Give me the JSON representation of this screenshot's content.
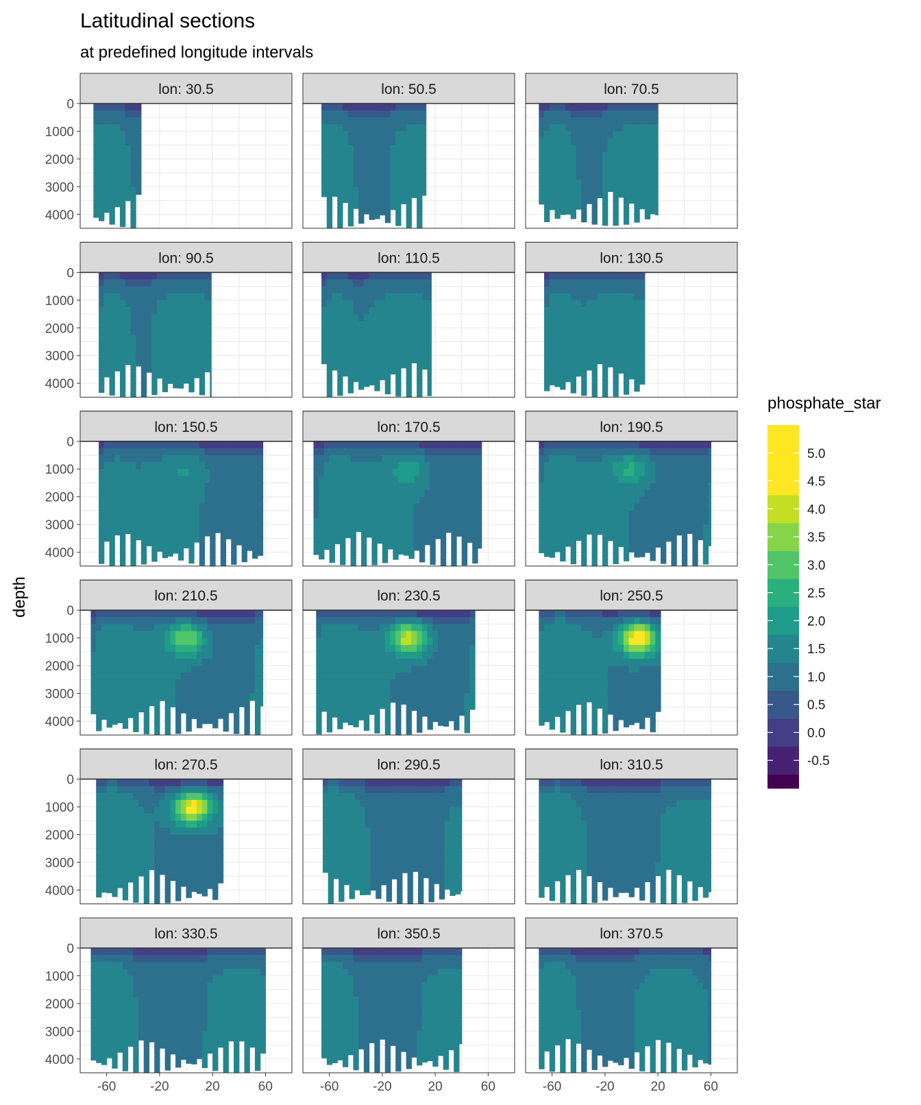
{
  "chart_data": {
    "type": "heatmap",
    "title": "Latitudinal sections",
    "subtitle": "at predefined longitude intervals",
    "ylabel": "depth",
    "xlabel": "",
    "x_ticks": [
      -60,
      -20,
      20,
      60
    ],
    "x_tick_labels": [
      "-60",
      "-20",
      "20",
      "60"
    ],
    "x_grid": [
      -80,
      -60,
      -40,
      -20,
      0,
      20,
      40,
      60,
      80
    ],
    "xlim": [
      -80,
      80
    ],
    "y_ticks": [
      0,
      1000,
      2000,
      3000,
      4000
    ],
    "y_tick_labels": [
      "0",
      "1000",
      "2000",
      "3000",
      "4000"
    ],
    "ylim": [
      4500,
      0
    ],
    "panel_label_prefix": "lon: ",
    "panels": [
      {
        "lon": "30.5",
        "label": "lon: 30.5",
        "lat_range": [
          -70,
          -34
        ],
        "max_depth": 4500,
        "hotspot": 0,
        "hot_lat": null
      },
      {
        "lon": "50.5",
        "label": "lon: 50.5",
        "lat_range": [
          -66,
          13
        ],
        "max_depth": 4500,
        "hotspot": 0,
        "hot_lat": null
      },
      {
        "lon": "70.5",
        "label": "lon: 70.5",
        "lat_range": [
          -70,
          20
        ],
        "max_depth": 4400,
        "hotspot": 0,
        "hot_lat": null
      },
      {
        "lon": "90.5",
        "label": "lon: 90.5",
        "lat_range": [
          -66,
          19
        ],
        "max_depth": 4500,
        "hotspot": 0,
        "hot_lat": null
      },
      {
        "lon": "110.5",
        "label": "lon: 110.5",
        "lat_range": [
          -66,
          17
        ],
        "max_depth": 4500,
        "hotspot": 0,
        "hot_lat": null
      },
      {
        "lon": "130.5",
        "label": "lon: 130.5",
        "lat_range": [
          -66,
          10
        ],
        "max_depth": 4500,
        "hotspot": 0,
        "hot_lat": null
      },
      {
        "lon": "150.5",
        "label": "lon: 150.5",
        "lat_range": [
          -66,
          58
        ],
        "max_depth": 4500,
        "hotspot": 0.5,
        "hot_lat": 0
      },
      {
        "lon": "170.5",
        "label": "lon: 170.5",
        "lat_range": [
          -72,
          55
        ],
        "max_depth": 4500,
        "hotspot": 0.8,
        "hot_lat": 0
      },
      {
        "lon": "190.5",
        "label": "lon: 190.5",
        "lat_range": [
          -70,
          60
        ],
        "max_depth": 4500,
        "hotspot": 1.2,
        "hot_lat": 0
      },
      {
        "lon": "210.5",
        "label": "lon: 210.5",
        "lat_range": [
          -72,
          58
        ],
        "max_depth": 4500,
        "hotspot": 2.2,
        "hot_lat": 0
      },
      {
        "lon": "230.5",
        "label": "lon: 230.5",
        "lat_range": [
          -70,
          50
        ],
        "max_depth": 4500,
        "hotspot": 3.0,
        "hot_lat": 0
      },
      {
        "lon": "250.5",
        "label": "lon: 250.5",
        "lat_range": [
          -70,
          22
        ],
        "max_depth": 4500,
        "hotspot": 3.8,
        "hot_lat": 5
      },
      {
        "lon": "270.5",
        "label": "lon: 270.5",
        "lat_range": [
          -68,
          28
        ],
        "max_depth": 4500,
        "hotspot": 3.6,
        "hot_lat": 5
      },
      {
        "lon": "290.5",
        "label": "lon: 290.5",
        "lat_range": [
          -65,
          40
        ],
        "max_depth": 4500,
        "hotspot": 0,
        "hot_lat": null
      },
      {
        "lon": "310.5",
        "label": "lon: 310.5",
        "lat_range": [
          -70,
          60
        ],
        "max_depth": 4500,
        "hotspot": 0,
        "hot_lat": null
      },
      {
        "lon": "330.5",
        "label": "lon: 330.5",
        "lat_range": [
          -72,
          60
        ],
        "max_depth": 4500,
        "hotspot": 0,
        "hot_lat": null
      },
      {
        "lon": "350.5",
        "label": "lon: 350.5",
        "lat_range": [
          -66,
          40
        ],
        "max_depth": 4500,
        "hotspot": 0,
        "hot_lat": null
      },
      {
        "lon": "370.5",
        "label": "lon: 370.5",
        "lat_range": [
          -70,
          60
        ],
        "max_depth": 4500,
        "hotspot": 0,
        "hot_lat": null
      }
    ],
    "legend": {
      "title": "phosphate_star",
      "placement": "right",
      "labels": [
        "5.0",
        "4.5",
        "4.0",
        "3.5",
        "3.0",
        "2.5",
        "2.0",
        "1.5",
        "1.0",
        "0.5",
        "0.0",
        "-0.5"
      ],
      "colors": [
        "#fde725",
        "#c2df23",
        "#86d549",
        "#52c569",
        "#2ab07f",
        "#1e9b8a",
        "#25858e",
        "#2d708e",
        "#38588c",
        "#433e85",
        "#482173",
        "#440154"
      ],
      "scale": [
        -1.0,
        -0.75,
        -0.25,
        0.25,
        0.75,
        1.25,
        1.75,
        2.25,
        2.75,
        3.25,
        3.75,
        4.25,
        4.75,
        5.25,
        5.5
      ]
    }
  }
}
